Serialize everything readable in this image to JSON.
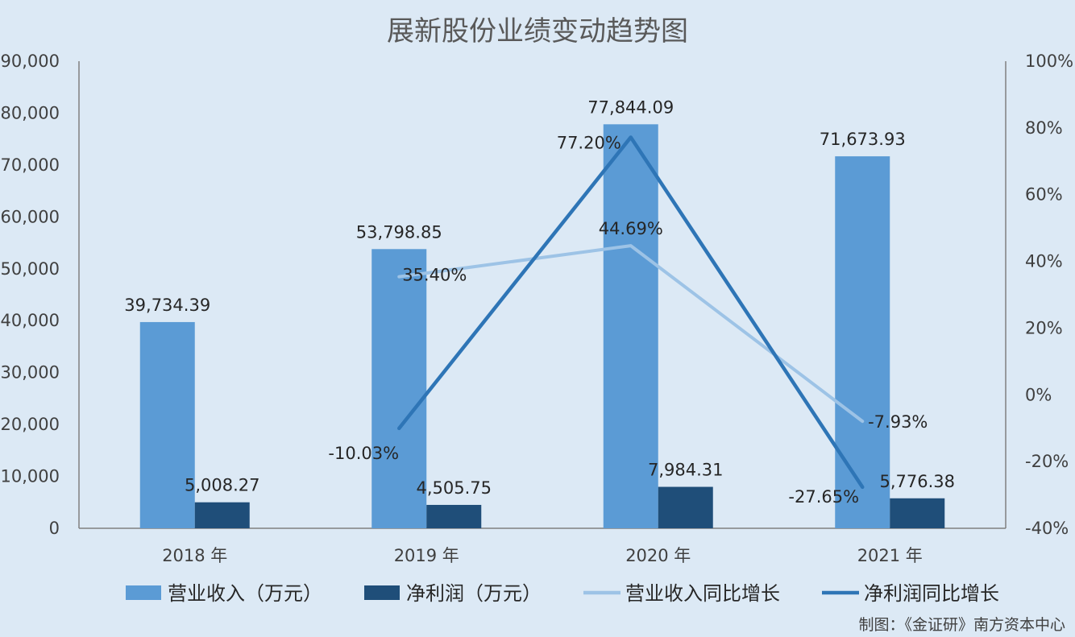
{
  "chart_data": {
    "type": "bar",
    "title": "展新股份业绩变动趋势图",
    "categories": [
      "2018 年",
      "2019 年",
      "2020 年",
      "2021 年"
    ],
    "y_left": {
      "ylim": [
        0,
        90000
      ],
      "ticks": [
        0,
        10000,
        20000,
        30000,
        40000,
        50000,
        60000,
        70000,
        80000,
        90000
      ],
      "tick_labels": [
        "0",
        "10,000",
        "20,000",
        "30,000",
        "40,000",
        "50,000",
        "60,000",
        "70,000",
        "80,000",
        "90,000"
      ]
    },
    "y_right": {
      "ylim": [
        -40,
        100
      ],
      "ticks": [
        -40,
        -20,
        0,
        20,
        40,
        60,
        80,
        100
      ],
      "tick_labels": [
        "-40%",
        "-20%",
        "0%",
        "20%",
        "40%",
        "60%",
        "80%",
        "100%"
      ]
    },
    "bar_series": [
      {
        "name": "营业收入（万元）",
        "color": "#5b9bd5",
        "values": [
          39734.39,
          53798.85,
          77844.09,
          71673.93
        ],
        "labels": [
          "39,734.39",
          "53,798.85",
          "77,844.09",
          "71,673.93"
        ]
      },
      {
        "name": "净利润（万元）",
        "color": "#1f4e79",
        "values": [
          5008.27,
          4505.75,
          7984.31,
          5776.38
        ],
        "labels": [
          "5,008.27",
          "4,505.75",
          "7,984.31",
          "5,776.38"
        ]
      }
    ],
    "line_series": [
      {
        "name": "营业收入同比增长",
        "color": "#9dc3e6",
        "points": [
          {
            "category_index": 1,
            "value": 35.4,
            "label": "35.40%"
          },
          {
            "category_index": 2,
            "value": 44.69,
            "label": "44.69%"
          },
          {
            "category_index": 3,
            "value": -7.93,
            "label": "-7.93%"
          }
        ]
      },
      {
        "name": "净利润同比增长",
        "color": "#2e75b6",
        "points": [
          {
            "category_index": 1,
            "value": -10.03,
            "label": "-10.03%"
          },
          {
            "category_index": 2,
            "value": 77.2,
            "label": "77.20%"
          },
          {
            "category_index": 3,
            "value": -27.65,
            "label": "-27.65%"
          }
        ]
      }
    ],
    "legend_position": "bottom",
    "credit": "制图：《金证研》南方资本中心"
  }
}
